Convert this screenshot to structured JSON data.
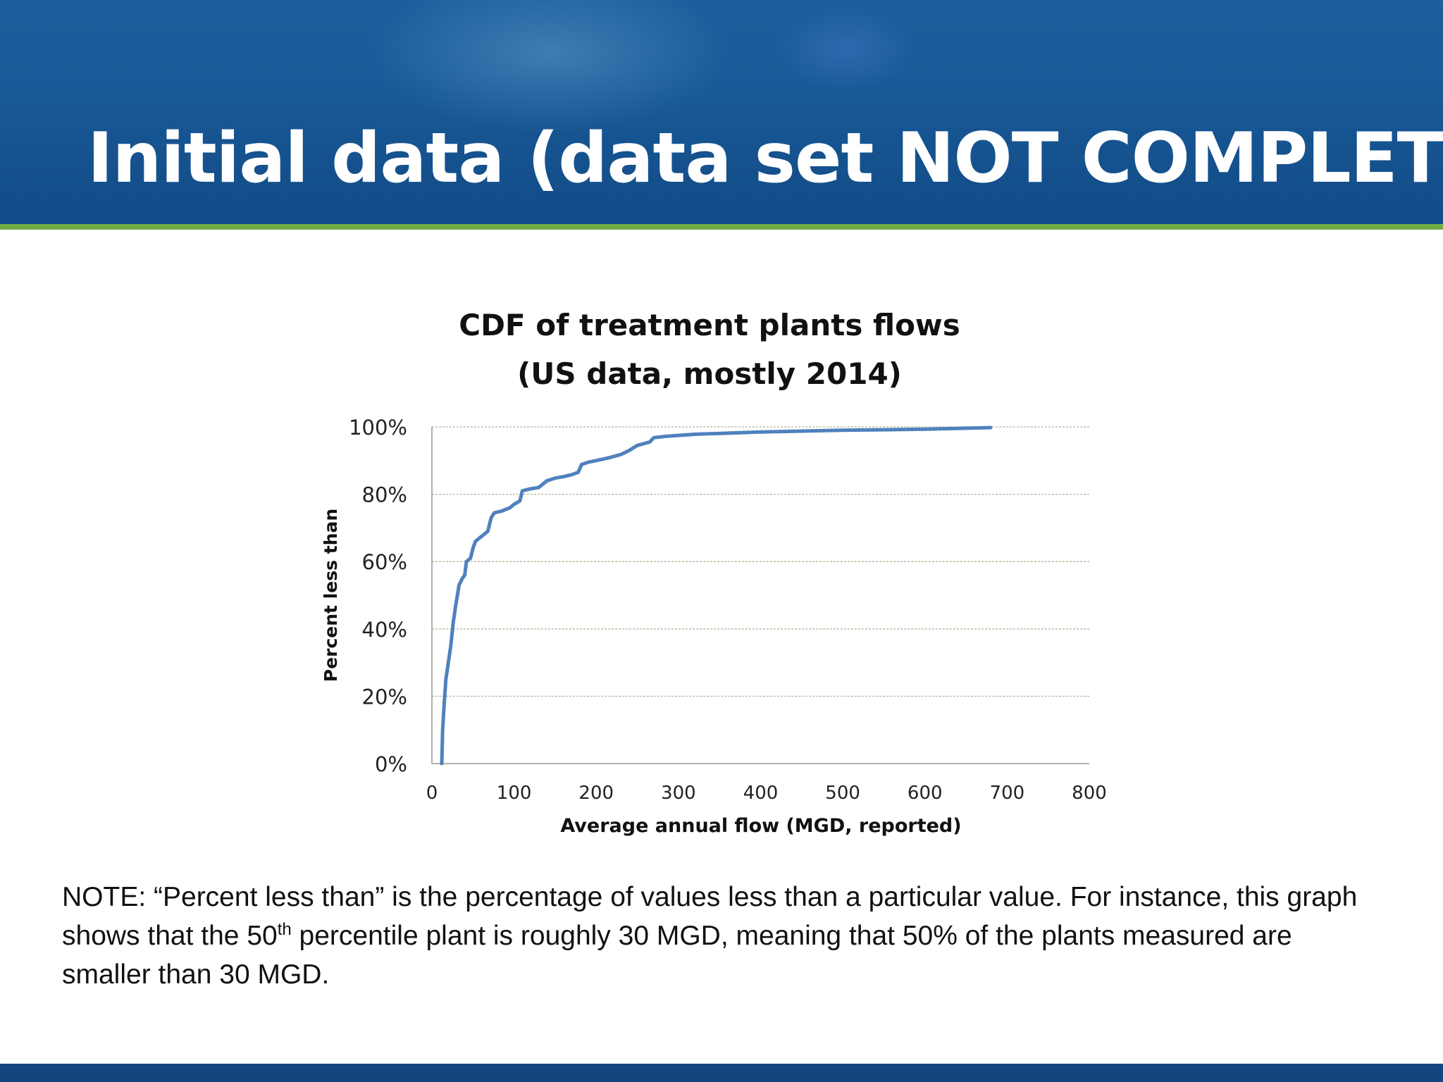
{
  "slide": {
    "title": "Initial data (data set NOT COMPLETE)",
    "colors": {
      "header": "#185a97",
      "accent_rule": "#70ad47",
      "footer": "#13467e"
    }
  },
  "note": {
    "part1": "NOTE: “Percent less than” is the percentage of values less than a particular value. For instance, this graph shows that the 50",
    "sup": "th",
    "part2": " percentile plant is roughly 30 MGD, meaning that 50% of the plants measured are smaller than 30 MGD."
  },
  "chart_data": {
    "type": "line",
    "title_line1": "CDF of treatment plants flows",
    "title_line2": "(US data, mostly 2014)",
    "xlabel": "Average annual flow (MGD, reported)",
    "ylabel": "Percent less than",
    "xlim": [
      0,
      800
    ],
    "ylim": [
      0,
      100
    ],
    "xticks": [
      0,
      100,
      200,
      300,
      400,
      500,
      600,
      700,
      800
    ],
    "yticks": [
      0,
      20,
      40,
      60,
      80,
      100
    ],
    "ytick_labels": [
      "0%",
      "20%",
      "40%",
      "60%",
      "80%",
      "100%"
    ],
    "grid": "horizontal",
    "legend": "none",
    "series": [
      {
        "name": "CDF",
        "color": "#4f81bd",
        "points": [
          [
            12,
            0
          ],
          [
            13,
            10
          ],
          [
            15,
            18
          ],
          [
            17,
            25
          ],
          [
            20,
            30
          ],
          [
            23,
            35
          ],
          [
            26,
            42
          ],
          [
            29,
            47
          ],
          [
            31,
            50
          ],
          [
            33,
            53
          ],
          [
            37,
            55
          ],
          [
            40,
            56
          ],
          [
            42,
            60
          ],
          [
            47,
            61
          ],
          [
            50,
            64
          ],
          [
            53,
            66
          ],
          [
            58,
            67
          ],
          [
            63,
            68
          ],
          [
            68,
            69
          ],
          [
            72,
            73
          ],
          [
            76,
            74.5
          ],
          [
            85,
            75
          ],
          [
            95,
            76
          ],
          [
            100,
            77
          ],
          [
            107,
            78
          ],
          [
            110,
            81
          ],
          [
            118,
            81.5
          ],
          [
            130,
            82
          ],
          [
            140,
            84
          ],
          [
            150,
            84.8
          ],
          [
            160,
            85.2
          ],
          [
            170,
            85.8
          ],
          [
            178,
            86.5
          ],
          [
            182,
            88.8
          ],
          [
            190,
            89.5
          ],
          [
            200,
            90
          ],
          [
            215,
            90.8
          ],
          [
            230,
            91.8
          ],
          [
            240,
            93
          ],
          [
            250,
            94.5
          ],
          [
            265,
            95.5
          ],
          [
            270,
            96.8
          ],
          [
            285,
            97.2
          ],
          [
            320,
            97.8
          ],
          [
            400,
            98.5
          ],
          [
            500,
            99.0
          ],
          [
            600,
            99.3
          ],
          [
            680,
            99.8
          ]
        ]
      }
    ]
  }
}
